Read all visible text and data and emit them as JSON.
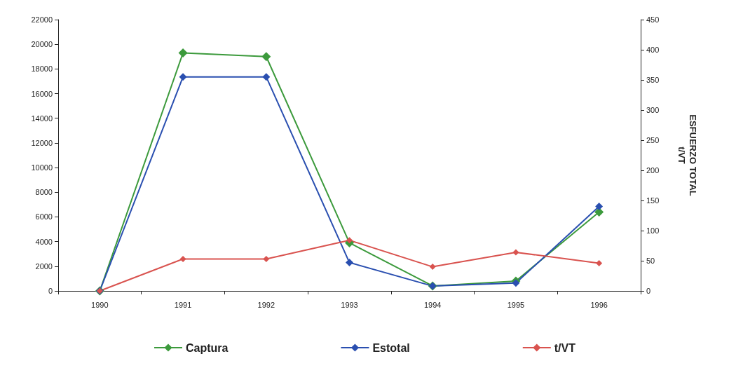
{
  "chart_data": {
    "type": "line",
    "categories": [
      "1990",
      "1991",
      "1992",
      "1993",
      "1994",
      "1995",
      "1996"
    ],
    "series": [
      {
        "name": "Captura",
        "color": "#3c9a3c",
        "values": [
          0,
          19300,
          19000,
          3900,
          400,
          800,
          6400
        ]
      },
      {
        "name": "Estotal",
        "color": "#2a4fb0",
        "axis": "y2",
        "values": [
          0,
          355,
          355,
          47,
          8,
          13,
          140
        ]
      },
      {
        "name": "t/VT",
        "color": "#d9534f",
        "axis": "y2",
        "values": [
          0,
          53,
          53,
          84,
          40,
          64,
          46
        ]
      }
    ],
    "ylim": [
      0,
      22000
    ],
    "yticks": [
      0,
      2000,
      4000,
      6000,
      8000,
      10000,
      12000,
      14000,
      16000,
      18000,
      20000,
      22000
    ],
    "y2lim": [
      0,
      450
    ],
    "y2ticks": [
      0,
      50,
      100,
      150,
      200,
      250,
      300,
      350,
      400,
      450
    ],
    "y2label": "ESFUERZO TOTAL\nt/VT",
    "marker": "diamond",
    "line_style": "solid",
    "grid": false,
    "legend": "bottom"
  }
}
